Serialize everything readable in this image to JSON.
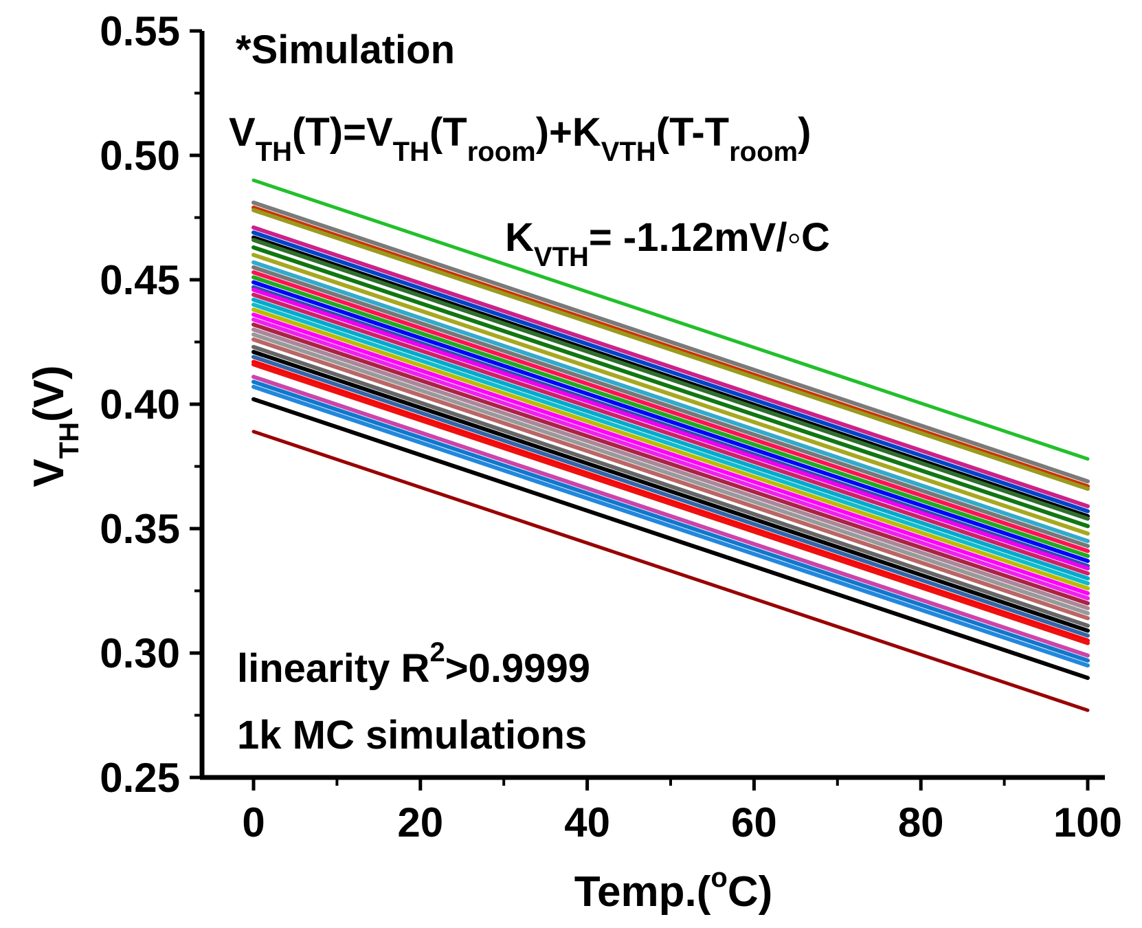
{
  "chart_data": {
    "type": "line",
    "title": "",
    "xlabel": "Temp.(°C)",
    "ylabel": "V_TH(V)",
    "xlim": [
      -5,
      105
    ],
    "ylim": [
      0.25,
      0.55
    ],
    "x_ticks": [
      0,
      20,
      40,
      60,
      80,
      100
    ],
    "x_tick_labels": [
      "0",
      "20",
      "40",
      "60",
      "80",
      "100"
    ],
    "y_ticks": [
      0.25,
      0.3,
      0.35,
      0.4,
      0.45,
      0.5,
      0.55
    ],
    "y_tick_labels": [
      "0.25",
      "0.30",
      "0.35",
      "0.40",
      "0.45",
      "0.50",
      "0.55"
    ],
    "x": [
      0,
      100
    ],
    "slope_v_per_degC": -0.00112,
    "series_v_at_0C": [
      0.49,
      0.481,
      0.479,
      0.478,
      0.471,
      0.469,
      0.467,
      0.466,
      0.463,
      0.46,
      0.457,
      0.455,
      0.453,
      0.451,
      0.449,
      0.447,
      0.446,
      0.444,
      0.442,
      0.44,
      0.438,
      0.436,
      0.434,
      0.432,
      0.43,
      0.428,
      0.426,
      0.423,
      0.421,
      0.419,
      0.417,
      0.416,
      0.411,
      0.409,
      0.407,
      0.402,
      0.389
    ],
    "series_colors": [
      "#22c02a",
      "#7a7a7a",
      "#cc3300",
      "#9a9a20",
      "#cc2288",
      "#0044cc",
      "#000000",
      "#2f6f2f",
      "#117711",
      "#a8a820",
      "#33aacc",
      "#777777",
      "#ff1155",
      "#22aa22",
      "#0000ff",
      "#2255aa",
      "#ee00ee",
      "#cc2266",
      "#00aacc",
      "#11bbcc",
      "#bbbb00",
      "#ff00ff",
      "#ee22ee",
      "#aa2244",
      "#aa8899",
      "#999999",
      "#bb6666",
      "#666666",
      "#000000",
      "#3366aa",
      "#ff0000",
      "#ee1111",
      "#cc44aa",
      "#1177cc",
      "#2288dd",
      "#000000",
      "#990000"
    ],
    "annotations": {
      "simulation": "*Simulation",
      "equation": {
        "p1": "V",
        "s1": "TH",
        "p2": "(T)=V",
        "s2": "TH",
        "p3": "(T",
        "s3": "room",
        "p4": ")+K",
        "s4": "VTH",
        "p5": "(T-T",
        "s5": "room",
        "p6": ")"
      },
      "kvth": {
        "main": "K",
        "sub": "VTH",
        "value": "= -1.12mV/◦C"
      },
      "linearity": {
        "text": "linearity R",
        "sup": "2",
        "value": ">0.9999"
      },
      "mc": "1k MC simulations"
    },
    "axis_titles": {
      "x": {
        "main": "Temp.(",
        "sup": "o",
        "end": "C)"
      },
      "y": {
        "main": "V",
        "sub": "TH",
        "end": "(V)"
      }
    }
  }
}
